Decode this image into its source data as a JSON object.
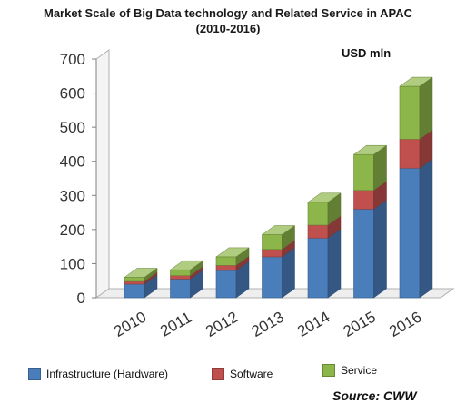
{
  "title": {
    "line1": "Market Scale of Big Data technology and Related Service in APAC",
    "line2": "(2010-2016)"
  },
  "unit_label": "USD mln",
  "source": "Source: CWW",
  "colors": {
    "infrastructure": "#4a7ebb",
    "software": "#c0504d",
    "service": "#8db64a"
  },
  "chart_data": {
    "type": "bar",
    "stacked": true,
    "three_d": true,
    "title": "Market Scale of Big Data technology and Related Service in APAC (2010-2016)",
    "ylabel": "USD mln",
    "ylim": [
      0,
      700
    ],
    "yticks": [
      0,
      100,
      200,
      300,
      400,
      500,
      600,
      700
    ],
    "grid": false,
    "legend_position": "bottom",
    "categories": [
      "2010",
      "2011",
      "2012",
      "2013",
      "2014",
      "2015",
      "2016"
    ],
    "series": [
      {
        "name": "Infrastructure (Hardware)",
        "color": "#4a7ebb",
        "values": [
          40,
          55,
          80,
          120,
          175,
          260,
          380
        ]
      },
      {
        "name": "Software",
        "color": "#c0504d",
        "values": [
          8,
          10,
          15,
          22,
          38,
          55,
          85
        ]
      },
      {
        "name": "Service",
        "color": "#8db64a",
        "values": [
          12,
          17,
          25,
          43,
          67,
          105,
          155
        ]
      }
    ]
  }
}
